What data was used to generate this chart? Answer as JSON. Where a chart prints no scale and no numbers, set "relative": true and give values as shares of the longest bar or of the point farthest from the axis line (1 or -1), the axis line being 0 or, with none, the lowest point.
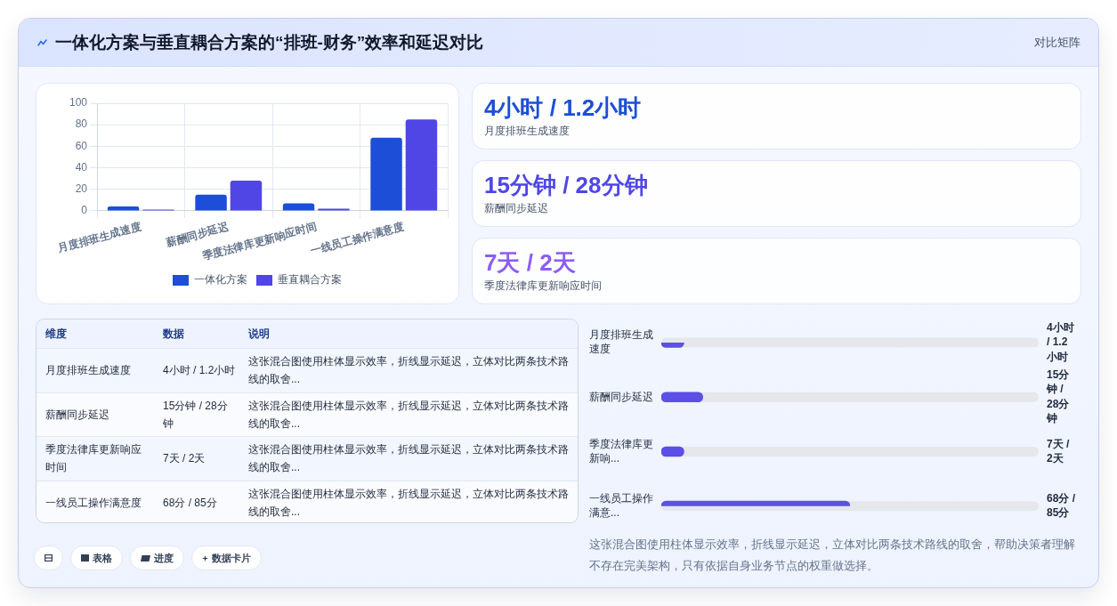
{
  "chart_data": [
    {
      "type": "other",
      "title": "一体化方案与垂直耦合方案的“排班-财务”效率和延迟对比",
      "annotations": [
        "对比矩阵"
      ]
    },
    {
      "type": "bar",
      "categories": [
        "月度排班生成速度",
        "薪酬同步延迟",
        "季度法律库更新响应时间",
        "一线员工操作满意度"
      ],
      "series": [
        {
          "name": "一体化方案",
          "color": "#1d4ed8",
          "values": [
            4,
            15,
            7,
            68
          ]
        },
        {
          "name": "垂直耦合方案",
          "color": "#4f46e5",
          "values": [
            1.2,
            28,
            2,
            85
          ]
        }
      ],
      "ylim": [
        0,
        100
      ],
      "yticks": [
        0,
        20,
        40,
        60,
        80,
        100
      ],
      "grid": true,
      "legend": "bottom"
    },
    {
      "type": "other",
      "title": "4小时 / 1.2小时",
      "subtitle": "月度排班生成速度"
    },
    {
      "type": "other",
      "title": "15分钟 / 28分钟",
      "subtitle": "薪酬同步延迟"
    },
    {
      "type": "other",
      "title": "7天 / 2天",
      "subtitle": "季度法律库更新响应时间"
    },
    {
      "type": "other",
      "categories": [
        "维度",
        "数据",
        "说明"
      ],
      "y_categories": [
        "月度排班生成速度",
        "薪酬同步延迟",
        "季度法律库更新响应时间",
        "一线员工操作满意度"
      ],
      "cell_labels": [
        [
          "4小时 / 1.2小时",
          "这张混合图使用柱体显示效率，折线显示延迟，立体对比两条技术路线的取舍..."
        ],
        [
          "15分钟 / 28分钟",
          "这张混合图使用柱体显示效率，折线显示延迟，立体对比两条技术路线的取舍..."
        ],
        [
          "7天 / 2天",
          "这张混合图使用柱体显示效率，折线显示延迟，立体对比两条技术路线的取舍..."
        ],
        [
          "68分 / 85分",
          "这张混合图使用柱体显示效率，折线显示延迟，立体对比两条技术路线的取舍..."
        ]
      ]
    },
    {
      "type": "bar",
      "orientation": "horizontal",
      "relative": true,
      "categories": [
        "月度排班生成速度",
        "薪酬同步延迟",
        "季度法律库更新响...",
        "一线员工操作满意..."
      ],
      "y2_categories": [
        "4小时 / 1.2小时",
        "15分钟 / 28分钟",
        "7天 / 2天",
        "68分 / 85分"
      ],
      "values": [
        0.12,
        0.22,
        0.12,
        1
      ],
      "color": "#5b4fe6",
      "annotations": [
        "这张混合图使用柱体显示效率，折线显示延迟，立体对比两条技术路线的取舍，帮助决策者理解不存在完美架构，只有依据自身业务节点的权重做选择。"
      ]
    },
    {
      "type": "other",
      "categories": [
        null,
        "表格",
        "进度",
        "数据卡片"
      ]
    }
  ]
}
